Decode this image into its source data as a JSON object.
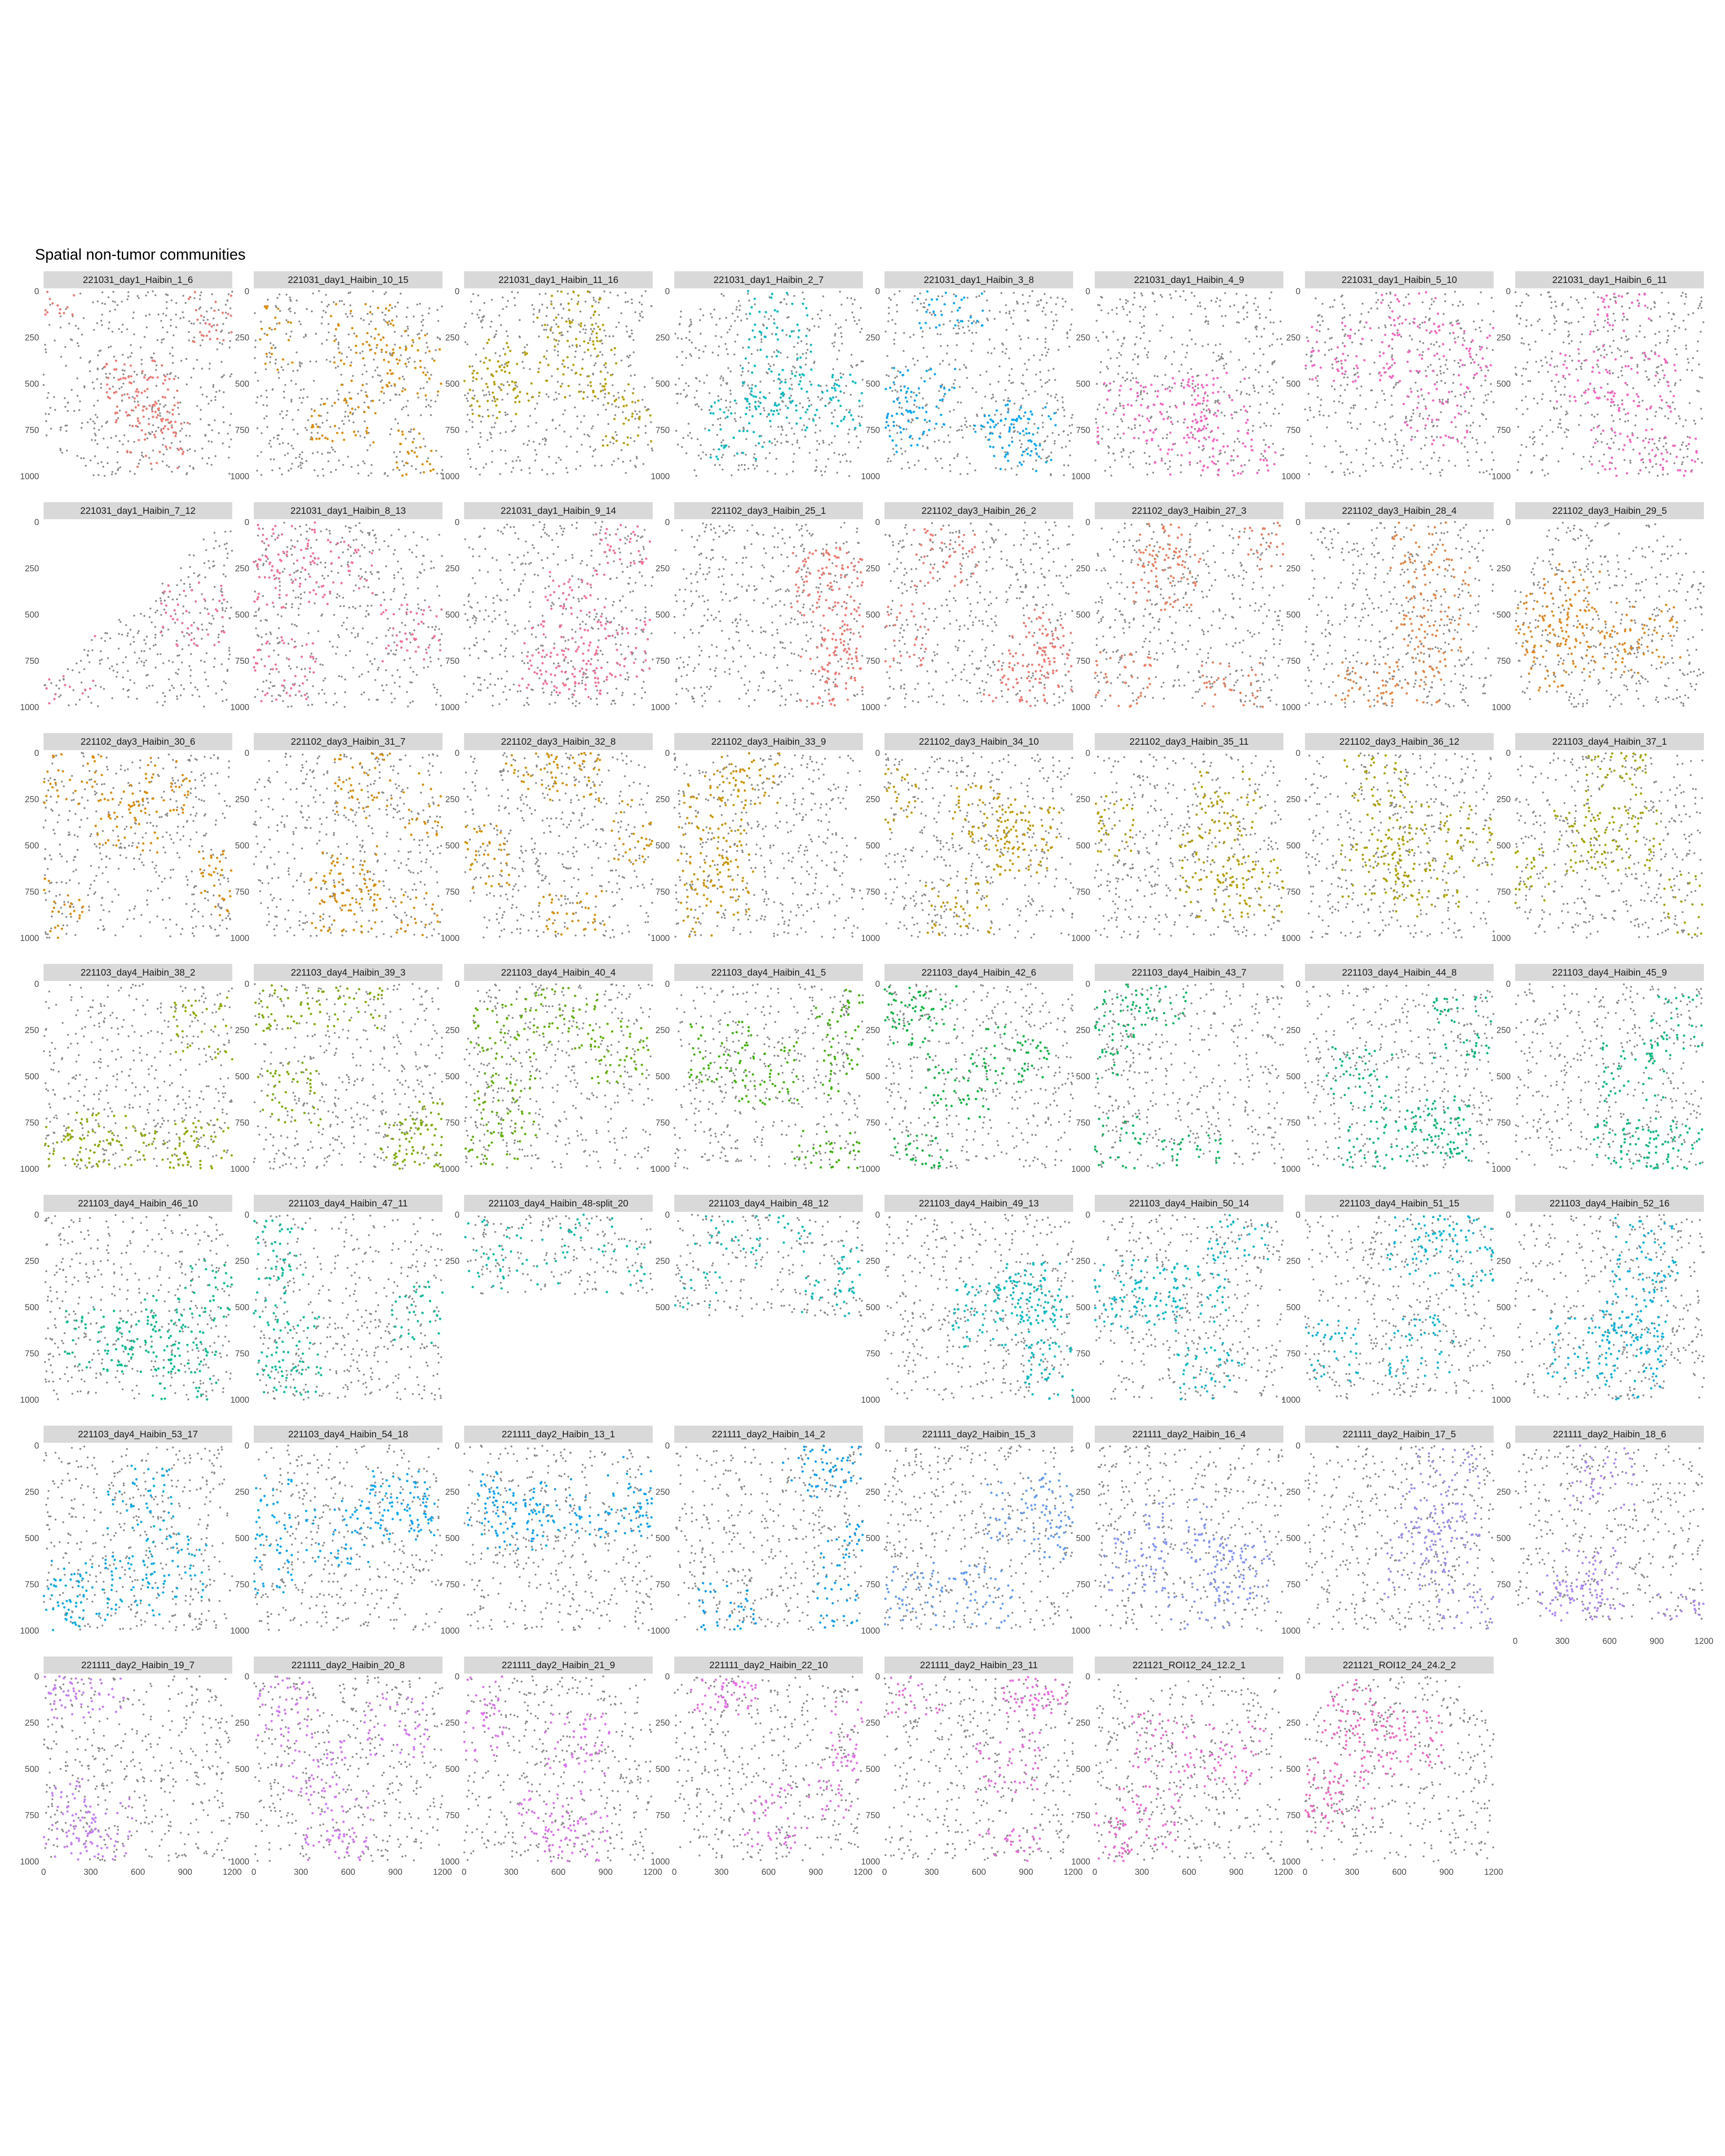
{
  "title": "Spatial non-tumor communities",
  "colors": {
    "background_points": "#8c8c8c",
    "strip_fill": "#d9d9d9",
    "tick_text": "#4d4d4d"
  },
  "chart_data": {
    "type": "scatter",
    "title": "Spatial non-tumor communities",
    "xlabel": "",
    "ylabel": "",
    "xlim": [
      0,
      1200
    ],
    "ylim": [
      1000,
      0
    ],
    "x_ticks": [
      "0",
      "300",
      "600",
      "900",
      "1200"
    ],
    "y_ticks": [
      "0",
      "250",
      "500",
      "750",
      "1000"
    ],
    "facet_layout": "8 columns x 7 rows",
    "grid": false,
    "facets": [
      {
        "label": "221031_day1_Haibin_1_6",
        "color": "#f8766d",
        "ymax": 1000,
        "shape": "full"
      },
      {
        "label": "221031_day1_Haibin_10_15",
        "color": "#e08b00",
        "ymax": 1000,
        "shape": "full"
      },
      {
        "label": "221031_day1_Haibin_11_16",
        "color": "#b79f00",
        "ymax": 1000,
        "shape": "full"
      },
      {
        "label": "221031_day1_Haibin_2_7",
        "color": "#00bfc4",
        "ymax": 1000,
        "shape": "full"
      },
      {
        "label": "221031_day1_Haibin_3_8",
        "color": "#00a9ff",
        "ymax": 1000,
        "shape": "full"
      },
      {
        "label": "221031_day1_Haibin_4_9",
        "color": "#ff61c3",
        "ymax": 1000,
        "shape": "full"
      },
      {
        "label": "221031_day1_Haibin_5_10",
        "color": "#ff61c3",
        "ymax": 1000,
        "shape": "full"
      },
      {
        "label": "221031_day1_Haibin_6_11",
        "color": "#ff61c3",
        "ymax": 1000,
        "shape": "full"
      },
      {
        "label": "221031_day1_Haibin_7_12",
        "color": "#ff6c91",
        "ymax": 1000,
        "shape": "triangle"
      },
      {
        "label": "221031_day1_Haibin_8_13",
        "color": "#ff6c91",
        "ymax": 1000,
        "shape": "full"
      },
      {
        "label": "221031_day1_Haibin_9_14",
        "color": "#ff6c91",
        "ymax": 1000,
        "shape": "full"
      },
      {
        "label": "221102_day3_Haibin_25_1",
        "color": "#f8766d",
        "ymax": 1000,
        "shape": "full"
      },
      {
        "label": "221102_day3_Haibin_26_2",
        "color": "#f8766d",
        "ymax": 1000,
        "shape": "full"
      },
      {
        "label": "221102_day3_Haibin_27_3",
        "color": "#f37b59",
        "ymax": 1000,
        "shape": "full"
      },
      {
        "label": "221102_day3_Haibin_28_4",
        "color": "#ed813e",
        "ymax": 1000,
        "shape": "full"
      },
      {
        "label": "221102_day3_Haibin_29_5",
        "color": "#e7861b",
        "ymax": 1000,
        "shape": "round"
      },
      {
        "label": "221102_day3_Haibin_30_6",
        "color": "#e38900",
        "ymax": 1000,
        "shape": "full"
      },
      {
        "label": "221102_day3_Haibin_31_7",
        "color": "#de8c00",
        "ymax": 1000,
        "shape": "full"
      },
      {
        "label": "221102_day3_Haibin_32_8",
        "color": "#d89000",
        "ymax": 1000,
        "shape": "full"
      },
      {
        "label": "221102_day3_Haibin_33_9",
        "color": "#d09400",
        "ymax": 1000,
        "shape": "full"
      },
      {
        "label": "221102_day3_Haibin_34_10",
        "color": "#c59900",
        "ymax": 1000,
        "shape": "full"
      },
      {
        "label": "221102_day3_Haibin_35_11",
        "color": "#b79f00",
        "ymax": 1000,
        "shape": "full"
      },
      {
        "label": "221102_day3_Haibin_36_12",
        "color": "#aea200",
        "ymax": 1000,
        "shape": "full"
      },
      {
        "label": "221103_day4_Haibin_37_1",
        "color": "#a3a500",
        "ymax": 1000,
        "shape": "full"
      },
      {
        "label": "221103_day4_Haibin_38_2",
        "color": "#93aa00",
        "ymax": 1000,
        "shape": "full"
      },
      {
        "label": "221103_day4_Haibin_39_3",
        "color": "#7cae00",
        "ymax": 1000,
        "shape": "full"
      },
      {
        "label": "221103_day4_Haibin_40_4",
        "color": "#5eb300",
        "ymax": 1000,
        "shape": "full"
      },
      {
        "label": "221103_day4_Haibin_41_5",
        "color": "#39b600",
        "ymax": 1000,
        "shape": "full"
      },
      {
        "label": "221103_day4_Haibin_42_6",
        "color": "#00ba38",
        "ymax": 1000,
        "shape": "full"
      },
      {
        "label": "221103_day4_Haibin_43_7",
        "color": "#00bc59",
        "ymax": 1000,
        "shape": "full"
      },
      {
        "label": "221103_day4_Haibin_44_8",
        "color": "#00bd73",
        "ymax": 1000,
        "shape": "full"
      },
      {
        "label": "221103_day4_Haibin_45_9",
        "color": "#00bf7d",
        "ymax": 1000,
        "shape": "full"
      },
      {
        "label": "221103_day4_Haibin_46_10",
        "color": "#00c08b",
        "ymax": 1000,
        "shape": "full"
      },
      {
        "label": "221103_day4_Haibin_47_11",
        "color": "#00c19a",
        "ymax": 1000,
        "shape": "full"
      },
      {
        "label": "221103_day4_Haibin_48-split_20",
        "color": "#00c1a9",
        "ymax": 430,
        "shape": "full"
      },
      {
        "label": "221103_day4_Haibin_48_12",
        "color": "#00c0b8",
        "ymax": 550,
        "shape": "full"
      },
      {
        "label": "221103_day4_Haibin_49_13",
        "color": "#00bfc4",
        "ymax": 1000,
        "shape": "full"
      },
      {
        "label": "221103_day4_Haibin_50_14",
        "color": "#00bccf",
        "ymax": 1000,
        "shape": "full"
      },
      {
        "label": "221103_day4_Haibin_51_15",
        "color": "#00b9d9",
        "ymax": 1000,
        "shape": "full"
      },
      {
        "label": "221103_day4_Haibin_52_16",
        "color": "#00b4e4",
        "ymax": 1000,
        "shape": "full"
      },
      {
        "label": "221103_day4_Haibin_53_17",
        "color": "#00aeee",
        "ymax": 1000,
        "shape": "full"
      },
      {
        "label": "221103_day4_Haibin_54_18",
        "color": "#00a9ff",
        "ymax": 1000,
        "shape": "full"
      },
      {
        "label": "221111_day2_Haibin_13_1",
        "color": "#00a5ff",
        "ymax": 1000,
        "shape": "full"
      },
      {
        "label": "221111_day2_Haibin_14_2",
        "color": "#00a0ff",
        "ymax": 1000,
        "shape": "full"
      },
      {
        "label": "221111_day2_Haibin_15_3",
        "color": "#619cff",
        "ymax": 1000,
        "shape": "full"
      },
      {
        "label": "221111_day2_Haibin_16_4",
        "color": "#8494ff",
        "ymax": 1000,
        "shape": "full"
      },
      {
        "label": "221111_day2_Haibin_17_5",
        "color": "#9d8df7",
        "ymax": 1000,
        "shape": "full"
      },
      {
        "label": "221111_day2_Haibin_18_6",
        "color": "#ae87ff",
        "ymax": 950,
        "shape": "full"
      },
      {
        "label": "221111_day2_Haibin_19_7",
        "color": "#c77cff",
        "ymax": 1000,
        "shape": "full"
      },
      {
        "label": "221111_day2_Haibin_20_8",
        "color": "#d774fd",
        "ymax": 1000,
        "shape": "full"
      },
      {
        "label": "221111_day2_Haibin_21_9",
        "color": "#e36ef6",
        "ymax": 1000,
        "shape": "full"
      },
      {
        "label": "221111_day2_Haibin_22_10",
        "color": "#ea6ae9",
        "ymax": 1000,
        "shape": "full"
      },
      {
        "label": "221111_day2_Haibin_23_11",
        "color": "#f067e0",
        "ymax": 1000,
        "shape": "full"
      },
      {
        "label": "221121_ROI12_24_12.2_1",
        "color": "#f564d4",
        "ymax": 1000,
        "shape": "full"
      },
      {
        "label": "221121_ROI12_24_24.2_2",
        "color": "#fa62c3",
        "ymax": 1000,
        "shape": "round"
      }
    ]
  }
}
